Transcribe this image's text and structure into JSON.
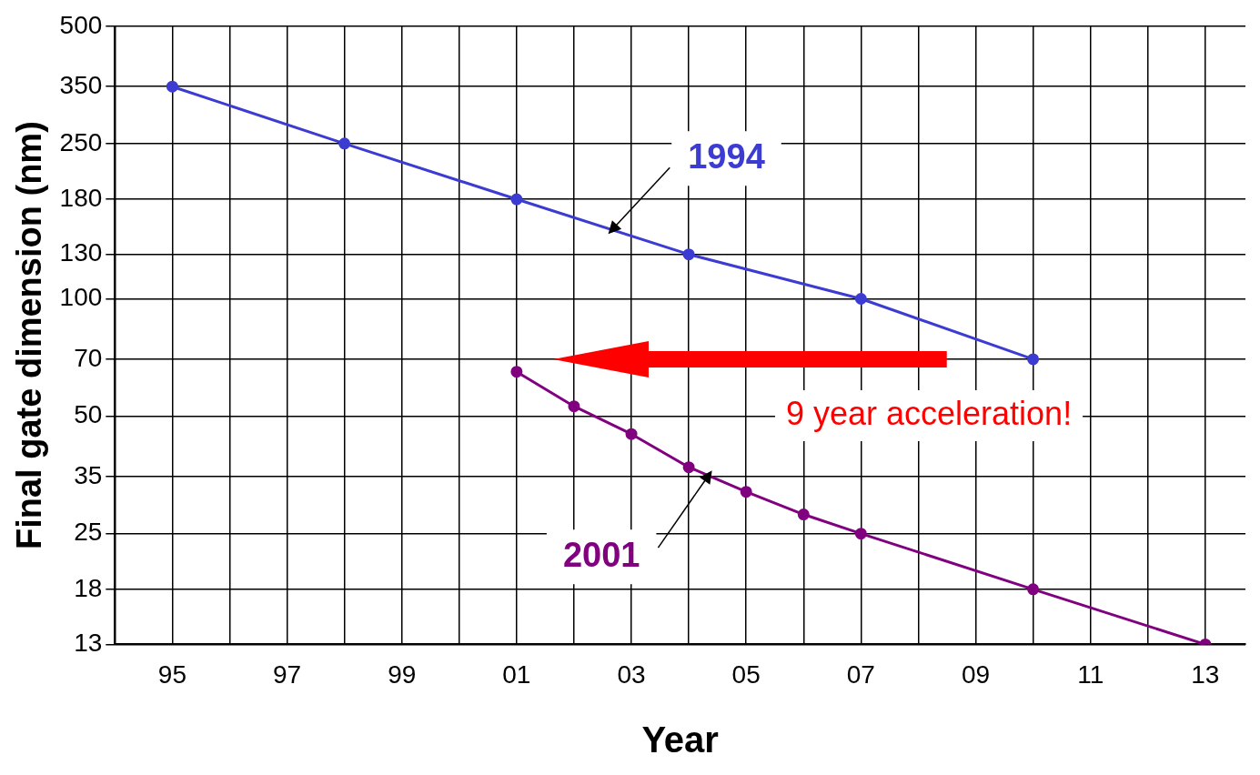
{
  "chart_data": {
    "type": "line",
    "xlabel": "Year",
    "ylabel": "Final gate dimension (nm)",
    "series": [
      {
        "name": "1994",
        "color": "#3c3cd2",
        "x": [
          1995,
          1998,
          2001,
          2004,
          2007,
          2010
        ],
        "values": [
          350,
          250,
          180,
          130,
          100,
          70
        ]
      },
      {
        "name": "2001",
        "color": "#800080",
        "x": [
          2001,
          2002,
          2003,
          2004,
          2005,
          2006,
          2007,
          2010,
          2013
        ],
        "values": [
          65,
          53,
          45,
          37,
          32,
          28,
          25,
          18,
          13
        ]
      }
    ],
    "xlim": [
      1994,
      2013.7
    ],
    "xticks": [
      {
        "value": 1994,
        "label": null
      },
      {
        "value": 1995,
        "label": "95"
      },
      {
        "value": 1996,
        "label": null
      },
      {
        "value": 1997,
        "label": "97"
      },
      {
        "value": 1998,
        "label": null
      },
      {
        "value": 1999,
        "label": "99"
      },
      {
        "value": 2000,
        "label": null
      },
      {
        "value": 2001,
        "label": "01"
      },
      {
        "value": 2002,
        "label": null
      },
      {
        "value": 2003,
        "label": "03"
      },
      {
        "value": 2004,
        "label": null
      },
      {
        "value": 2005,
        "label": "05"
      },
      {
        "value": 2006,
        "label": null
      },
      {
        "value": 2007,
        "label": "07"
      },
      {
        "value": 2008,
        "label": null
      },
      {
        "value": 2009,
        "label": "09"
      },
      {
        "value": 2010,
        "label": null
      },
      {
        "value": 2011,
        "label": "11"
      },
      {
        "value": 2012,
        "label": null
      },
      {
        "value": 2013,
        "label": "13"
      }
    ],
    "ylim": [
      13,
      500
    ],
    "yticks": [
      13,
      18,
      25,
      35,
      50,
      70,
      100,
      130,
      180,
      250,
      350,
      500
    ],
    "log": true,
    "grid": true,
    "legend": false,
    "marker": "circle",
    "line_style": "solid",
    "annotations": [
      "9 year acceleration!"
    ]
  }
}
